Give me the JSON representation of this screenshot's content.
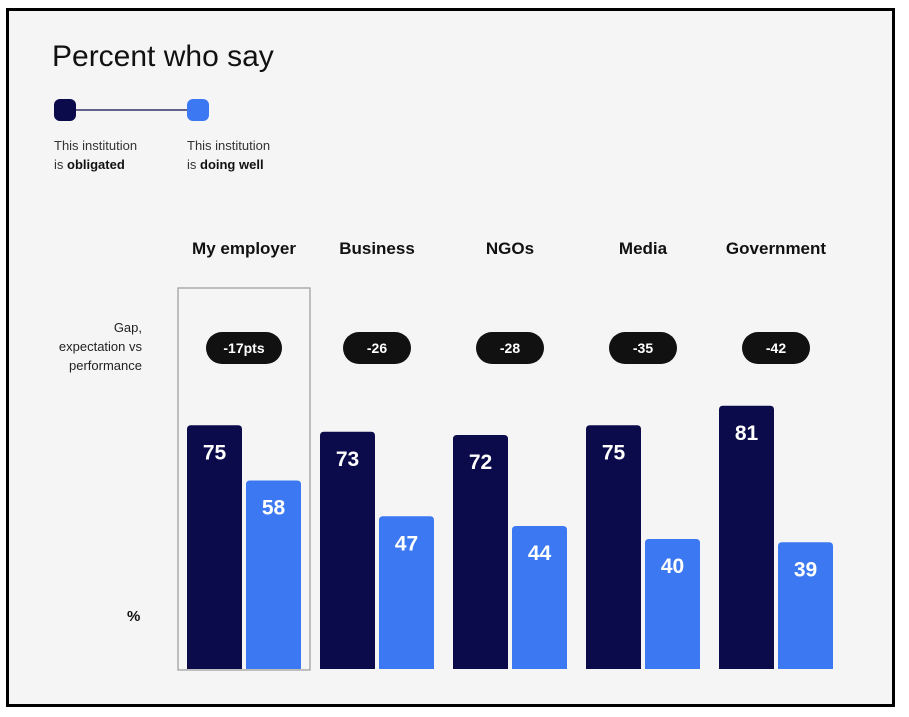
{
  "chart_data": {
    "type": "bar",
    "title": "Percent who say",
    "categories": [
      "My employer",
      "Business",
      "NGOs",
      "Media",
      "Government"
    ],
    "series": [
      {
        "name_lines": [
          "This institution",
          "is ",
          "obligated"
        ],
        "color": "#0b0a4a",
        "values": [
          75,
          73,
          72,
          75,
          81
        ]
      },
      {
        "name_lines": [
          "This institution",
          "is ",
          "doing well"
        ],
        "color": "#3b78f2",
        "values": [
          58,
          47,
          44,
          40,
          39
        ]
      }
    ],
    "gap_label_lines": [
      "Gap,",
      "expectation vs",
      "performance"
    ],
    "gap_values": [
      "-17pts",
      "-26",
      "-28",
      "-35",
      "-42"
    ],
    "highlighted_category": "My employer",
    "unit_label": "%"
  }
}
